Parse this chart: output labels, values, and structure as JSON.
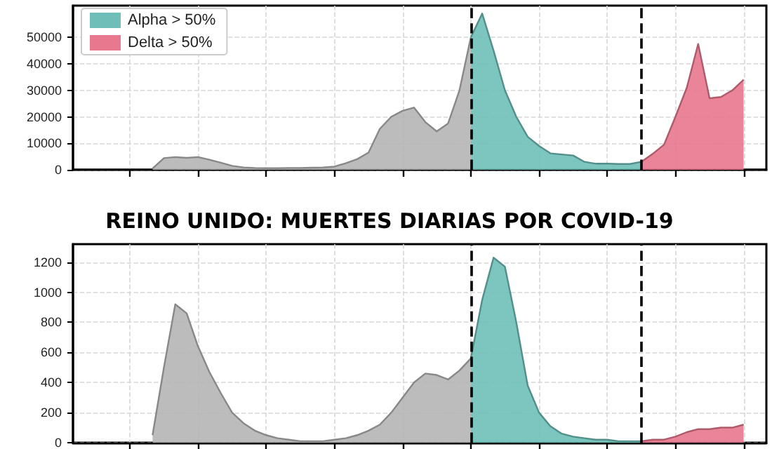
{
  "chart_data": [
    {
      "type": "area",
      "categories": [
        null,
        null,
        null,
        null,
        null,
        null,
        null,
        null,
        null,
        null,
        null,
        null,
        null,
        null,
        null,
        null,
        null,
        null,
        null,
        null,
        null,
        null,
        null,
        null,
        null,
        null,
        null,
        null,
        null,
        null,
        null,
        null,
        null,
        null,
        null,
        null,
        null,
        null,
        null,
        null,
        null,
        null,
        null,
        null,
        null,
        null,
        null,
        null,
        null,
        null,
        null,
        null,
        null,
        null,
        null,
        null,
        null,
        null,
        null,
        null,
        null,
        null
      ],
      "ylim": [
        0,
        62000
      ],
      "yticks": [
        0,
        10000,
        20000,
        30000,
        40000,
        50000
      ],
      "grid": true,
      "legend": "top left",
      "tick_labels": "y",
      "series": [
        {
          "color": "#b5b5b5",
          "values": [
            null,
            null,
            null,
            null,
            null,
            null,
            null,
            500,
            4400,
            4800,
            4500,
            4800,
            3800,
            2700,
            1500,
            900,
            700,
            600,
            600,
            700,
            700,
            800,
            900,
            1200,
            2500,
            4000,
            6500,
            15500,
            20000,
            22300,
            23500,
            18000,
            14500,
            17500,
            30000,
            50000,
            null,
            null,
            null,
            null,
            null,
            null,
            null,
            null,
            null,
            null,
            null,
            null,
            null,
            null,
            null,
            null,
            null,
            null,
            null,
            null,
            null,
            null,
            null,
            null,
            null,
            null
          ]
        },
        {
          "name": "Alpha > 50%",
          "color": "#6fbfb8",
          "values": [
            null,
            null,
            null,
            null,
            null,
            null,
            null,
            null,
            null,
            null,
            null,
            null,
            null,
            null,
            null,
            null,
            null,
            null,
            null,
            null,
            null,
            null,
            null,
            null,
            null,
            null,
            null,
            null,
            null,
            null,
            null,
            null,
            null,
            null,
            null,
            50000,
            59000,
            45000,
            30000,
            20000,
            12500,
            9000,
            6200,
            5800,
            5400,
            3000,
            2300,
            2300,
            2200,
            2200,
            3000,
            null,
            null,
            null,
            null,
            null,
            null,
            null,
            null,
            null,
            null,
            null
          ]
        },
        {
          "name": "Delta > 50%",
          "color": "#e8788e",
          "values": [
            null,
            null,
            null,
            null,
            null,
            null,
            null,
            null,
            null,
            null,
            null,
            null,
            null,
            null,
            null,
            null,
            null,
            null,
            null,
            null,
            null,
            null,
            null,
            null,
            null,
            null,
            null,
            null,
            null,
            null,
            null,
            null,
            null,
            null,
            null,
            null,
            null,
            null,
            null,
            null,
            null,
            null,
            null,
            null,
            null,
            null,
            null,
            null,
            null,
            null,
            3000,
            6000,
            9500,
            20000,
            31000,
            47500,
            27000,
            27500,
            30000,
            34000,
            null,
            null
          ]
        }
      ]
    },
    {
      "type": "area",
      "title": "REINO UNIDO: MUERTES DIARIAS POR COVID-19",
      "categories": [
        null,
        null,
        null,
        null,
        null,
        null,
        null,
        null,
        null,
        null,
        null,
        null,
        null,
        null,
        null,
        null,
        null,
        null,
        null,
        null,
        null,
        null,
        null,
        null,
        null,
        null,
        null,
        null,
        null,
        null,
        null,
        null,
        null,
        null,
        null,
        null,
        null,
        null,
        null,
        null,
        null,
        null,
        null,
        null,
        null,
        null,
        null,
        null,
        null,
        null,
        null,
        null,
        null,
        null,
        null,
        null,
        null,
        null,
        null,
        null,
        null,
        null
      ],
      "ylim": [
        0,
        1320
      ],
      "yticks": [
        0,
        200,
        400,
        600,
        800,
        1000,
        1200
      ],
      "grid": true,
      "tick_labels": "y",
      "series": [
        {
          "color": "#b5b5b5",
          "values": [
            null,
            null,
            null,
            null,
            null,
            null,
            null,
            50,
            500,
            920,
            860,
            640,
            470,
            330,
            200,
            130,
            80,
            50,
            30,
            20,
            10,
            10,
            10,
            20,
            30,
            50,
            80,
            120,
            200,
            300,
            400,
            460,
            450,
            420,
            480,
            560,
            null,
            null,
            null,
            null,
            null,
            null,
            null,
            null,
            null,
            null,
            null,
            null,
            null,
            null,
            null,
            null,
            null,
            null,
            null,
            null,
            null,
            null,
            null,
            null,
            null,
            null
          ]
        },
        {
          "color": "#6fbfb8",
          "values": [
            null,
            null,
            null,
            null,
            null,
            null,
            null,
            null,
            null,
            null,
            null,
            null,
            null,
            null,
            null,
            null,
            null,
            null,
            null,
            null,
            null,
            null,
            null,
            null,
            null,
            null,
            null,
            null,
            null,
            null,
            null,
            null,
            null,
            null,
            null,
            560,
            950,
            1230,
            1170,
            800,
            380,
            200,
            110,
            60,
            40,
            30,
            20,
            20,
            10,
            10,
            10,
            null,
            null,
            null,
            null,
            null,
            null,
            null,
            null,
            null,
            null,
            null
          ]
        },
        {
          "color": "#e8788e",
          "values": [
            null,
            null,
            null,
            null,
            null,
            null,
            null,
            null,
            null,
            null,
            null,
            null,
            null,
            null,
            null,
            null,
            null,
            null,
            null,
            null,
            null,
            null,
            null,
            null,
            null,
            null,
            null,
            null,
            null,
            null,
            null,
            null,
            null,
            null,
            null,
            null,
            null,
            null,
            null,
            null,
            null,
            null,
            null,
            null,
            null,
            null,
            null,
            null,
            null,
            null,
            10,
            20,
            20,
            40,
            70,
            90,
            90,
            100,
            100,
            120,
            null,
            null
          ]
        }
      ]
    }
  ]
}
